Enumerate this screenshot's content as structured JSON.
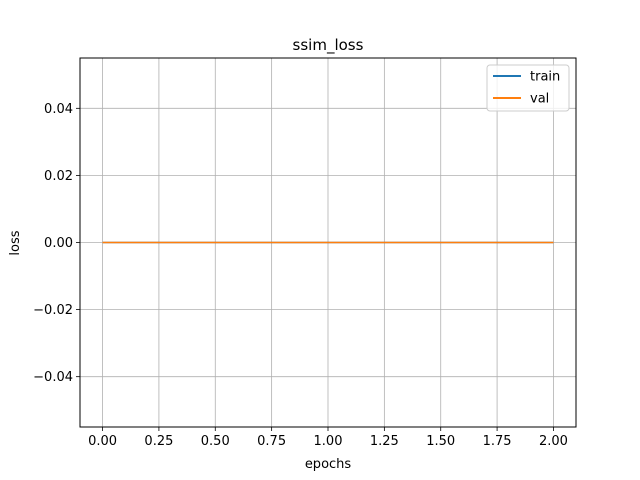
{
  "chart_data": {
    "type": "line",
    "title": "ssim_loss",
    "xlabel": "epochs",
    "ylabel": "loss",
    "xlim": [
      -0.1,
      2.1
    ],
    "ylim": [
      -0.055,
      0.055
    ],
    "x_ticks": [
      0.0,
      0.25,
      0.5,
      0.75,
      1.0,
      1.25,
      1.5,
      1.75,
      2.0
    ],
    "x_tick_labels": [
      "0.00",
      "0.25",
      "0.50",
      "0.75",
      "1.00",
      "1.25",
      "1.50",
      "1.75",
      "2.00"
    ],
    "y_ticks": [
      -0.04,
      -0.02,
      0.0,
      0.02,
      0.04
    ],
    "y_tick_labels": [
      "−0.04",
      "−0.02",
      "0.00",
      "0.02",
      "0.04"
    ],
    "grid": true,
    "legend_position": "top-right",
    "x": [
      0,
      1,
      2
    ],
    "series": [
      {
        "name": "train",
        "color": "#1f77b4",
        "values": [
          0.0,
          0.0,
          0.0
        ]
      },
      {
        "name": "val",
        "color": "#ff7f0e",
        "values": [
          0.0,
          0.0,
          0.0
        ]
      }
    ]
  }
}
